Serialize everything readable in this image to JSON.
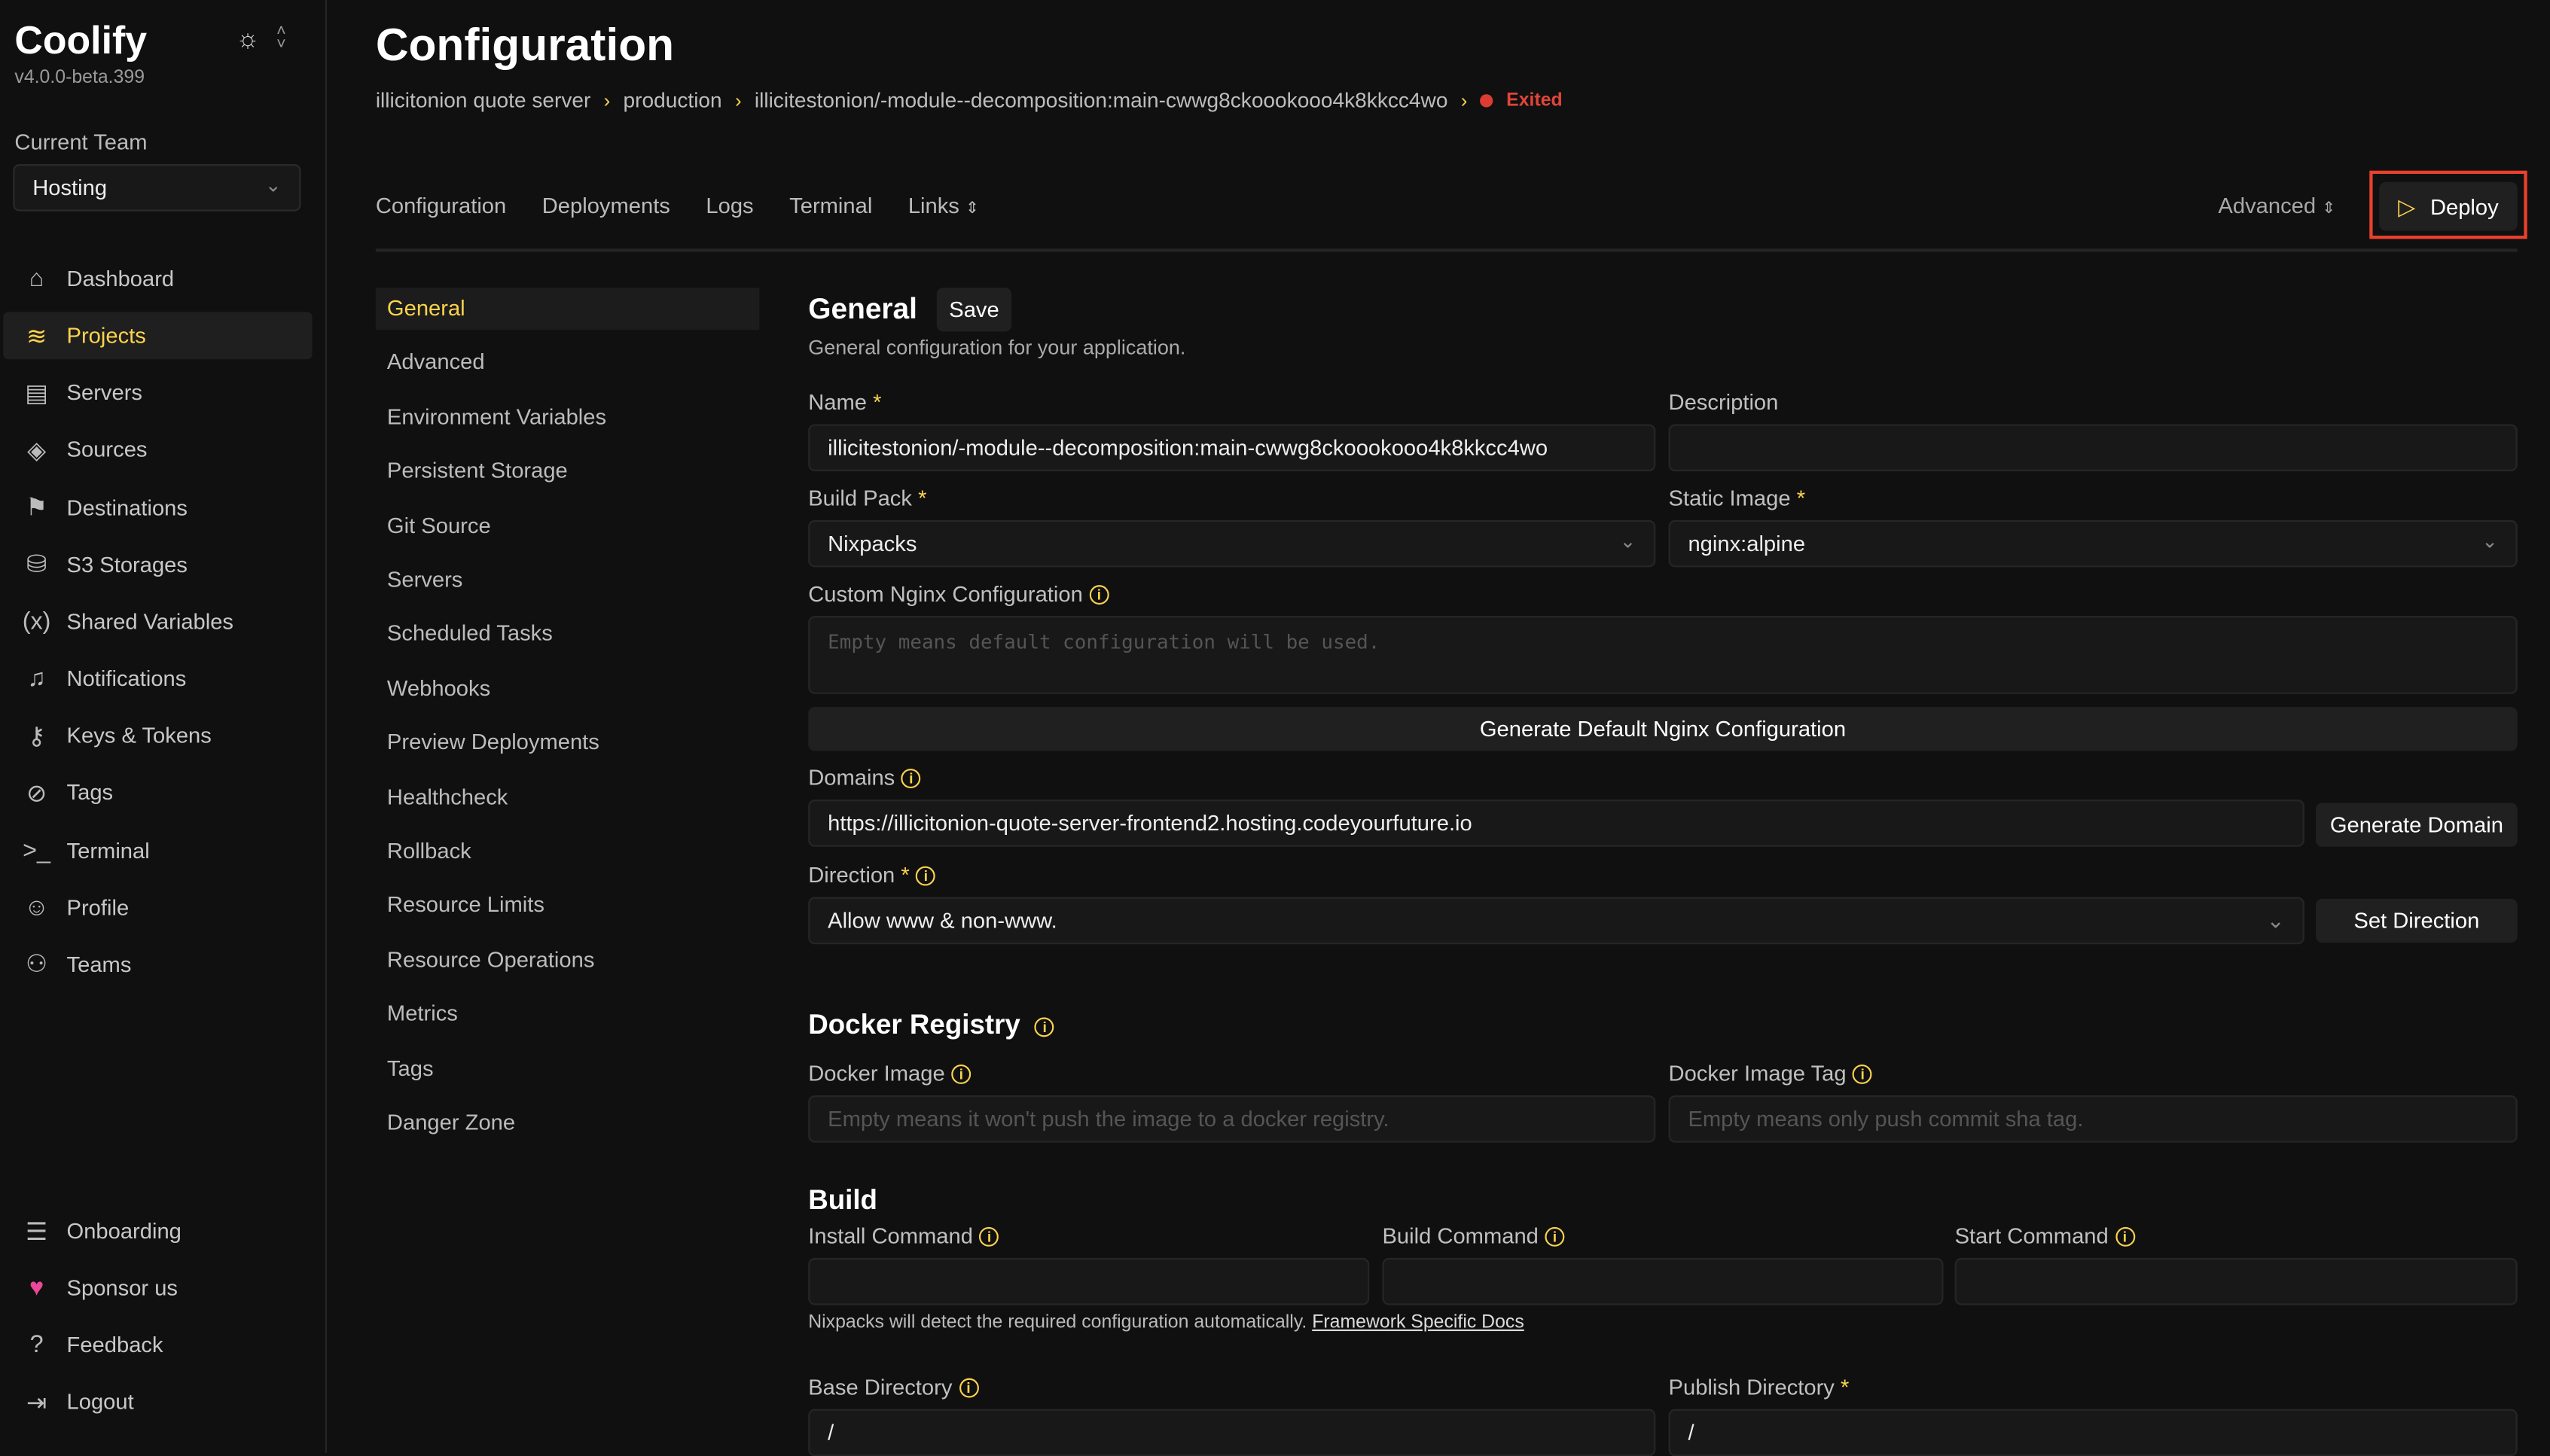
{
  "app": {
    "name": "Coolify",
    "version": "v4.0.0-beta.399"
  },
  "team": {
    "label": "Current Team",
    "value": "Hosting"
  },
  "nav": [
    {
      "label": "Dashboard",
      "icon": "home-icon",
      "glyph": "⌂"
    },
    {
      "label": "Projects",
      "icon": "layers-icon",
      "glyph": "≋",
      "active": true
    },
    {
      "label": "Servers",
      "icon": "server-icon",
      "glyph": "▤"
    },
    {
      "label": "Sources",
      "icon": "git-icon",
      "glyph": "◈"
    },
    {
      "label": "Destinations",
      "icon": "map-icon",
      "glyph": "⚑"
    },
    {
      "label": "S3 Storages",
      "icon": "database-icon",
      "glyph": "⛁"
    },
    {
      "label": "Shared Variables",
      "icon": "variable-icon",
      "glyph": "(x)"
    },
    {
      "label": "Notifications",
      "icon": "bell-icon",
      "glyph": "♫"
    },
    {
      "label": "Keys & Tokens",
      "icon": "key-icon",
      "glyph": "⚷"
    },
    {
      "label": "Tags",
      "icon": "tag-icon",
      "glyph": "⊘"
    },
    {
      "label": "Terminal",
      "icon": "terminal-icon",
      "glyph": ">_"
    },
    {
      "label": "Profile",
      "icon": "user-icon",
      "glyph": "☺"
    },
    {
      "label": "Teams",
      "icon": "users-icon",
      "glyph": "⚇"
    }
  ],
  "nav_bottom": [
    {
      "label": "Onboarding",
      "icon": "checklist-icon",
      "glyph": "☰"
    },
    {
      "label": "Sponsor us",
      "icon": "heart-icon",
      "glyph": "♥"
    },
    {
      "label": "Feedback",
      "icon": "help-icon",
      "glyph": "?"
    },
    {
      "label": "Logout",
      "icon": "logout-icon",
      "glyph": "⇥"
    }
  ],
  "page": {
    "title": "Configuration"
  },
  "breadcrumb": {
    "project": "illicitonion quote server",
    "environment": "production",
    "resource": "illicitestonion/-module--decomposition:main-cwwg8ckoookooo4k8kkcc4wo",
    "status": "Exited"
  },
  "tabs": [
    "Configuration",
    "Deployments",
    "Logs",
    "Terminal",
    "Links"
  ],
  "advanced_label": "Advanced",
  "deploy_label": "Deploy",
  "subnav": [
    "General",
    "Advanced",
    "Environment Variables",
    "Persistent Storage",
    "Git Source",
    "Servers",
    "Scheduled Tasks",
    "Webhooks",
    "Preview Deployments",
    "Healthcheck",
    "Rollback",
    "Resource Limits",
    "Resource Operations",
    "Metrics",
    "Tags",
    "Danger Zone"
  ],
  "general": {
    "title": "General",
    "save": "Save",
    "subtitle": "General configuration for your application.",
    "name_label": "Name",
    "name_value": "illicitestonion/-module--decomposition:main-cwwg8ckoookooo4k8kkcc4wo",
    "description_label": "Description",
    "description_value": "",
    "buildpack_label": "Build Pack",
    "buildpack_value": "Nixpacks",
    "static_label": "Static Image",
    "static_value": "nginx:alpine",
    "nginx_label": "Custom Nginx Configuration",
    "nginx_placeholder": "Empty means default configuration will be used.",
    "nginx_button": "Generate Default Nginx Configuration",
    "domains_label": "Domains",
    "domains_value": "https://illicitonion-quote-server-frontend2.hosting.codeyourfuture.io",
    "generate_domain": "Generate Domain",
    "direction_label": "Direction",
    "direction_value": "Allow www & non-www.",
    "set_direction": "Set Direction"
  },
  "registry": {
    "title": "Docker Registry",
    "image_label": "Docker Image",
    "image_placeholder": "Empty means it won't push the image to a docker registry.",
    "tag_label": "Docker Image Tag",
    "tag_placeholder": "Empty means only push commit sha tag."
  },
  "build": {
    "title": "Build",
    "install_label": "Install Command",
    "build_label": "Build Command",
    "start_label": "Start Command",
    "note": "Nixpacks will detect the required configuration automatically.",
    "docs_link": "Framework Specific Docs",
    "base_label": "Base Directory",
    "base_value": "/",
    "publish_label": "Publish Directory",
    "publish_value": "/"
  },
  "colors": {
    "accent": "#fcd34d",
    "status_exited": "#dc3c32",
    "highlight": "#e8412c"
  }
}
